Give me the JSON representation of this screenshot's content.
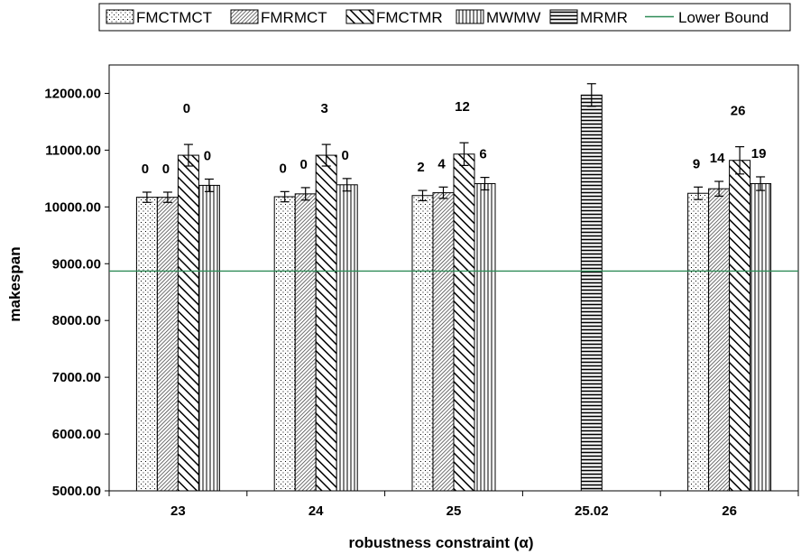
{
  "chart_data": {
    "type": "bar",
    "xlabel": "robustness constraint (α)",
    "ylabel": "makespan",
    "ylim": [
      5000,
      12500
    ],
    "yticks": [
      "5000.00",
      "6000.00",
      "7000.00",
      "8000.00",
      "9000.00",
      "10000.00",
      "11000.00",
      "12000.00"
    ],
    "categories": [
      "23",
      "24",
      "25",
      "25.02",
      "26"
    ],
    "legend_position": "top",
    "series": [
      {
        "name": "FMCTMCT",
        "pattern": "dots",
        "values": [
          10170,
          10180,
          10200,
          null,
          10240
        ],
        "errors": [
          90,
          90,
          90,
          null,
          110
        ],
        "labels": [
          "0",
          "0",
          "2",
          "",
          "9"
        ]
      },
      {
        "name": "FMRMCT",
        "pattern": "diag-fine",
        "values": [
          10170,
          10230,
          10250,
          null,
          10320
        ],
        "errors": [
          90,
          110,
          100,
          null,
          130
        ],
        "labels": [
          "0",
          "0",
          "4",
          "",
          "14"
        ]
      },
      {
        "name": "FMCTMR",
        "pattern": "diag-wide",
        "values": [
          10910,
          10910,
          10930,
          null,
          10820
        ],
        "errors": [
          190,
          190,
          200,
          null,
          240
        ],
        "labels": [
          "0",
          "3",
          "12",
          "",
          "26"
        ]
      },
      {
        "name": "MWMW",
        "pattern": "vertical",
        "values": [
          10380,
          10390,
          10410,
          null,
          10410
        ],
        "errors": [
          110,
          110,
          110,
          null,
          120
        ],
        "labels": [
          "0",
          "0",
          "6",
          "",
          "19"
        ]
      },
      {
        "name": "MRMR",
        "pattern": "horizontal",
        "values": [
          null,
          null,
          null,
          11970,
          null
        ],
        "errors": [
          null,
          null,
          null,
          200,
          null
        ],
        "labels": [
          "",
          "",
          "",
          "",
          ""
        ]
      }
    ],
    "reference_lines": [
      {
        "name": "Lower Bound",
        "value": 8870,
        "color": "#2e8b57"
      }
    ]
  }
}
